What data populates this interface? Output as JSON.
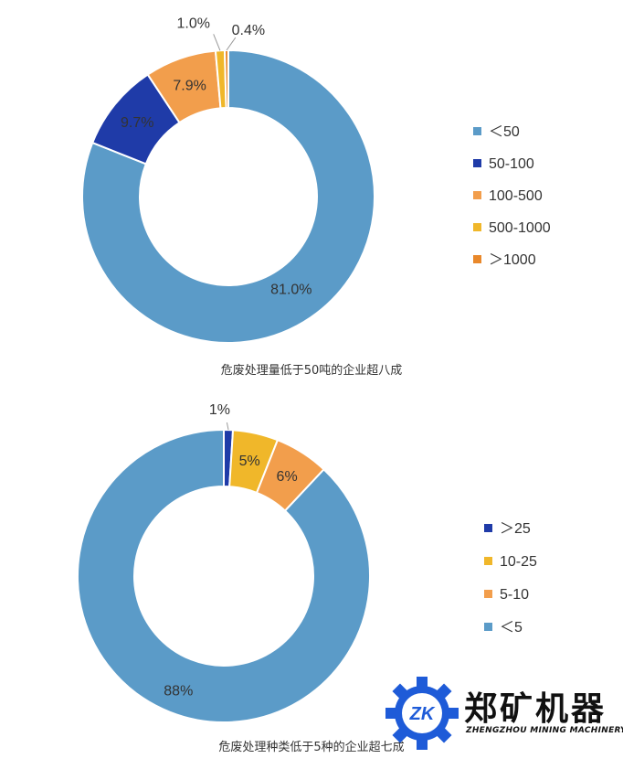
{
  "chart_data": [
    {
      "type": "pie",
      "donut": true,
      "categories": [
        "＜50",
        "50-100",
        "100-500",
        "500-1000",
        "＞1000"
      ],
      "values": [
        81.0,
        9.7,
        7.9,
        1.0,
        0.4
      ],
      "labels": [
        "81.0%",
        "9.7%",
        "7.9%",
        "1.0%",
        "0.4%"
      ],
      "colors": [
        "#5b9bc8",
        "#1f3ba8",
        "#f29e4c",
        "#f0b72a",
        "#e9882a"
      ],
      "legend_position": "right",
      "caption": "危废处理量低于50吨的企业超八成"
    },
    {
      "type": "pie",
      "donut": true,
      "categories": [
        "＞25",
        "10-25",
        "5-10",
        "＜5"
      ],
      "values": [
        1,
        5,
        6,
        88
      ],
      "labels": [
        "1%",
        "5%",
        "6%",
        "88%"
      ],
      "colors": [
        "#1f3ba8",
        "#f0b72a",
        "#f29e4c",
        "#5b9bc8"
      ],
      "legend_position": "right",
      "caption": "危废处理种类低于5种的企业超七成"
    }
  ],
  "watermark": {
    "name": "郑矿机器",
    "subtitle": "ZHENGZHOU MINING MACHINERY",
    "mark": "ZK",
    "color": "#1e5bd8"
  }
}
